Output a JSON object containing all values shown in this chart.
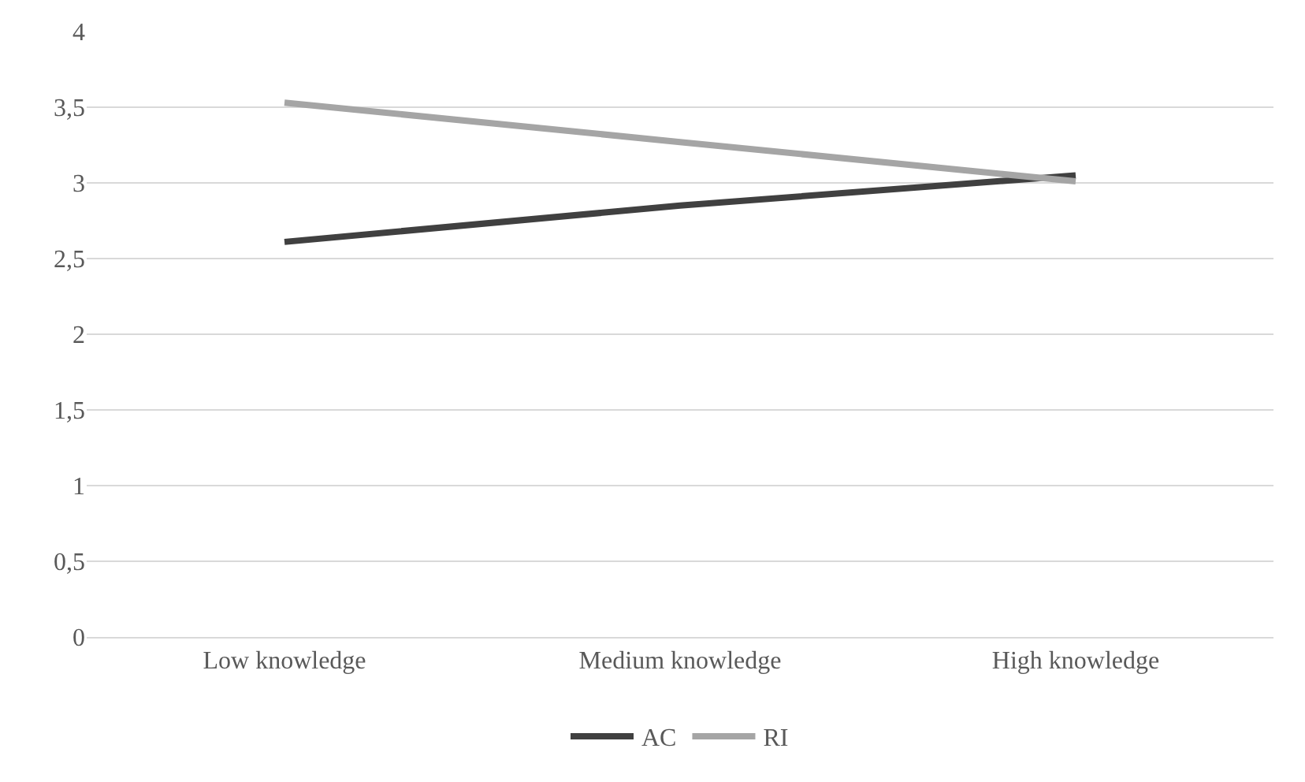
{
  "chart_data": {
    "type": "line",
    "categories": [
      "Low knowledge",
      "Medium knowledge",
      "High knowledge"
    ],
    "series": [
      {
        "name": "AC",
        "color": "#404040",
        "values": [
          2.61,
          2.85,
          3.05
        ]
      },
      {
        "name": "RI",
        "color": "#a5a5a5",
        "values": [
          3.53,
          3.27,
          3.01
        ]
      }
    ],
    "ylim": [
      0,
      4
    ],
    "yticks": [
      0,
      {
        "value": 0.5,
        "label": "0,5"
      },
      1,
      {
        "value": 1.5,
        "label": "1,5"
      },
      2,
      {
        "value": 2.5,
        "label": "2,5"
      },
      3,
      {
        "value": 3.5,
        "label": "3,5"
      },
      4
    ],
    "grid": "y",
    "legend": "bottom",
    "marker": "none",
    "line_style": "solid"
  }
}
